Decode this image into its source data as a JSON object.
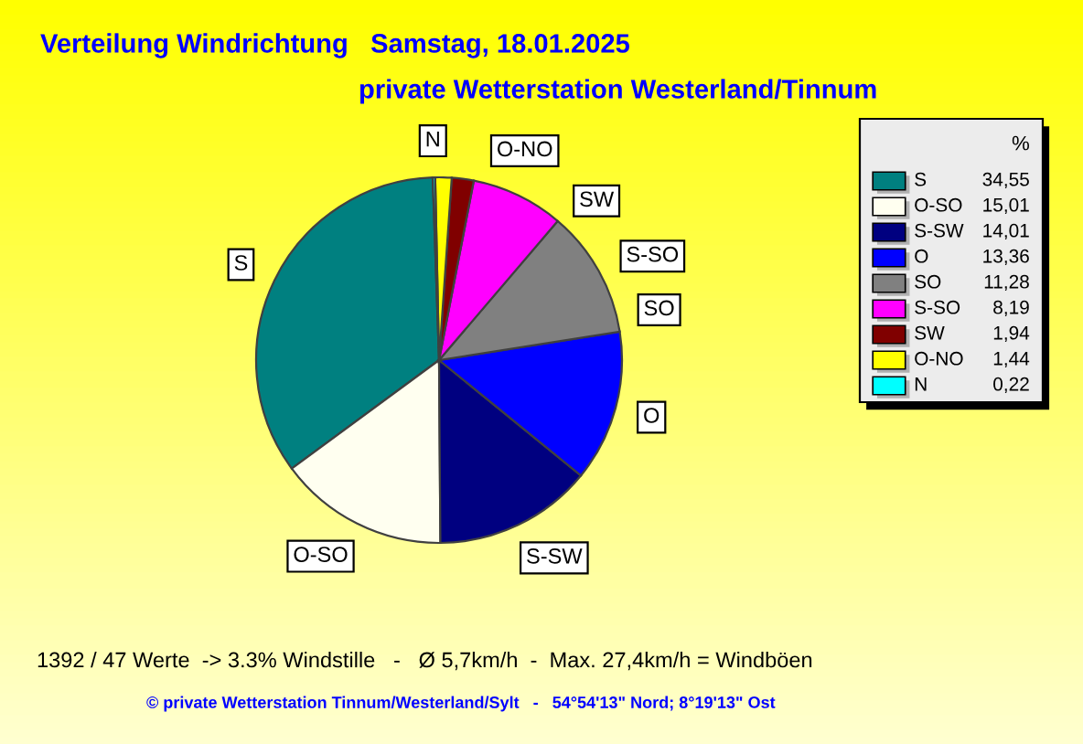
{
  "chart_data": {
    "type": "pie",
    "title": "Verteilung Windrichtung   Samstag, 18.01.2025",
    "subtitle": "private Wetterstation Westerland/Tinnum",
    "categories": [
      "S",
      "O-SO",
      "S-SW",
      "O",
      "SO",
      "S-SO",
      "SW",
      "O-NO",
      "N"
    ],
    "values": [
      34.55,
      15.01,
      14.01,
      13.36,
      11.28,
      8.19,
      1.94,
      1.44,
      0.22
    ],
    "value_labels": [
      "34,55",
      "15,01",
      "14,01",
      "13,36",
      "11,28",
      "8,19",
      "1,94",
      "1,44",
      "0,22"
    ],
    "colors": [
      "#008080",
      "#fffff0",
      "#000080",
      "#0000ff",
      "#808080",
      "#ff00ff",
      "#800000",
      "#ffff00",
      "#00ffff"
    ],
    "legend_title": "%",
    "legend": "right",
    "annotations": [
      "1392 / 47 Werte  -> 3.3% Windstille   -   Ø 5,7km/h  -  Max. 27,4km/h = Windböen",
      "© private Wetterstation Tinnum/Westerland/Sylt   -   54°54'13\" Nord; 8°19'13\" Ost"
    ]
  }
}
